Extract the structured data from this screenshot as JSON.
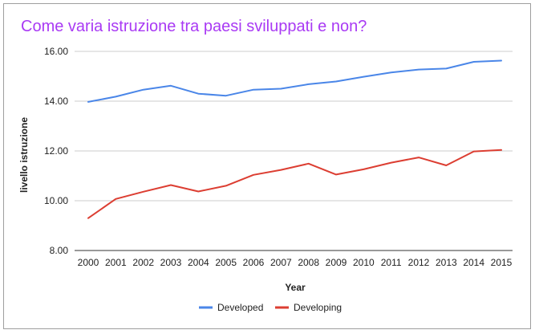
{
  "chart_data": {
    "type": "line",
    "title": "Come varia istruzione tra paesi sviluppati e non?",
    "xlabel": "Year",
    "ylabel": "livello istruzione",
    "ylim": [
      8,
      16
    ],
    "yticks": [
      "8.00",
      "10.00",
      "12.00",
      "14.00",
      "16.00"
    ],
    "grid": true,
    "legend_position": "bottom",
    "x": [
      "2000",
      "2001",
      "2002",
      "2003",
      "2004",
      "2005",
      "2006",
      "2007",
      "2008",
      "2009",
      "2010",
      "2011",
      "2012",
      "2013",
      "2014",
      "2015"
    ],
    "series": [
      {
        "name": "Developed",
        "color": "#4a86e8",
        "values": [
          13.97,
          14.18,
          14.46,
          14.62,
          14.3,
          14.22,
          14.46,
          14.5,
          14.68,
          14.79,
          14.98,
          15.15,
          15.27,
          15.31,
          15.58,
          15.63
        ]
      },
      {
        "name": "Developing",
        "color": "#dc3e32",
        "values": [
          9.3,
          10.07,
          10.36,
          10.63,
          10.37,
          10.6,
          11.04,
          11.24,
          11.49,
          11.05,
          11.26,
          11.53,
          11.74,
          11.42,
          11.98,
          12.04
        ]
      }
    ]
  }
}
